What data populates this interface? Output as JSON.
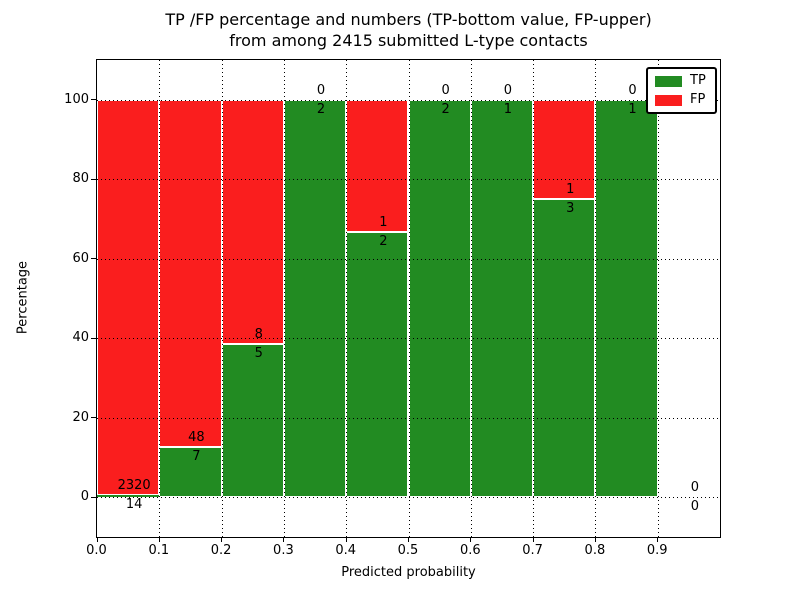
{
  "title": {
    "line1": "TP /FP percentage and numbers (TP-bottom value, FP-upper)",
    "line2": "from among 2415 submitted L-type contacts"
  },
  "axes": {
    "x_label": "Predicted probability",
    "y_label": "Percentage",
    "x_ticks": [
      "0.0",
      "0.1",
      "0.2",
      "0.3",
      "0.4",
      "0.5",
      "0.6",
      "0.7",
      "0.8",
      "0.9"
    ],
    "y_ticks": [
      "0",
      "20",
      "40",
      "60",
      "80",
      "100"
    ],
    "xlim": [
      0.0,
      1.0
    ],
    "ylim": [
      -10,
      110
    ],
    "grid": "dotted, drawn above bars"
  },
  "legend": {
    "position": "upper right",
    "entries": [
      {
        "label": "TP",
        "color": "#228b22"
      },
      {
        "label": "FP",
        "color": "#fa1e1e"
      }
    ]
  },
  "colors": {
    "tp": "#228b22",
    "fp": "#fa1e1e",
    "bar_edge": "#ffffff",
    "text": "#000000",
    "background": "#ffffff"
  },
  "chart_data": {
    "type": "bar",
    "stacked": true,
    "normalized": "percent (each bar sums to 100%)",
    "title": "TP /FP percentage and numbers (TP-bottom value, FP-upper) from among 2415 submitted L-type contacts",
    "xlabel": "Predicted probability",
    "ylabel": "Percentage",
    "xlim": [
      0.0,
      1.0
    ],
    "ylim": [
      -10,
      110
    ],
    "bin_edges": [
      0.0,
      0.1,
      0.2,
      0.3,
      0.4,
      0.5,
      0.6,
      0.7,
      0.8,
      0.9,
      1.0
    ],
    "series": [
      {
        "name": "TP",
        "color": "#228b22",
        "counts": [
          14,
          7,
          5,
          2,
          2,
          2,
          1,
          3,
          1,
          0
        ]
      },
      {
        "name": "FP",
        "color": "#fa1e1e",
        "counts": [
          2320,
          48,
          8,
          0,
          1,
          0,
          0,
          1,
          0,
          0
        ]
      }
    ],
    "tp_percent": [
      0.6,
      12.73,
      38.46,
      100,
      66.67,
      100,
      100,
      75,
      100,
      0
    ],
    "total_contacts": 2415,
    "annotation_rule": "FP count printed above TP/FP boundary, TP count below it"
  }
}
